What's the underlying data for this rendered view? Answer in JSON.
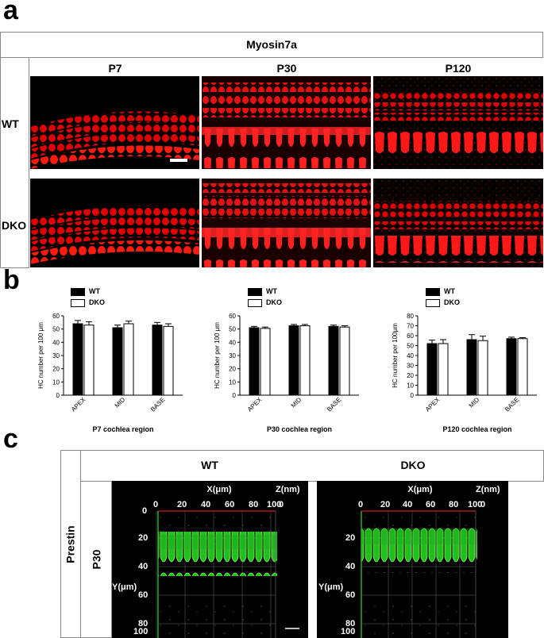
{
  "panel_a": {
    "letter": "a",
    "title": "Myosin7a",
    "columns": [
      "P7",
      "P30",
      "P120"
    ],
    "rows": [
      "WT",
      "DKO"
    ]
  },
  "panel_b": {
    "letter": "b",
    "legend": [
      "WT",
      "DKO"
    ],
    "colors": {
      "wt": "#000000",
      "dko": "#ffffff"
    }
  },
  "chart_data": [
    {
      "type": "bar",
      "categories": [
        "APEX",
        "MID",
        "BASE"
      ],
      "series": [
        {
          "name": "WT",
          "values": [
            54,
            51,
            53
          ],
          "errors": [
            2.5,
            2.0,
            2.0
          ]
        },
        {
          "name": "DKO",
          "values": [
            53,
            54,
            52
          ],
          "errors": [
            2.5,
            2.0,
            2.0
          ]
        }
      ],
      "xlabel": "P7 cochlea region",
      "ylabel": "HC number per 100 μm",
      "ylim": [
        0,
        60
      ],
      "yticks": [
        0,
        10,
        20,
        30,
        40,
        50,
        60
      ]
    },
    {
      "type": "bar",
      "categories": [
        "APEX",
        "MID",
        "BASE"
      ],
      "series": [
        {
          "name": "WT",
          "values": [
            51,
            52.5,
            52
          ],
          "errors": [
            1.0,
            1.0,
            1.0
          ]
        },
        {
          "name": "DKO",
          "values": [
            50.5,
            52.5,
            51.5
          ],
          "errors": [
            1.0,
            1.0,
            1.0
          ]
        }
      ],
      "xlabel": "P30 cochlea region",
      "ylabel": "HC number per 100 μm",
      "ylim": [
        0,
        60
      ],
      "yticks": [
        0,
        10,
        20,
        30,
        40,
        50,
        60
      ]
    },
    {
      "type": "bar",
      "categories": [
        "APEX",
        "MID",
        "BASE"
      ],
      "series": [
        {
          "name": "WT",
          "values": [
            52,
            56,
            57
          ],
          "errors": [
            3.5,
            5.0,
            1.5
          ]
        },
        {
          "name": "DKO",
          "values": [
            52,
            55,
            57
          ],
          "errors": [
            4.0,
            4.5,
            1.0
          ]
        }
      ],
      "xlabel": "P120 cochlea region",
      "ylabel": "HC number per 100μm",
      "ylim": [
        0,
        80
      ],
      "yticks": [
        0,
        10,
        20,
        30,
        40,
        50,
        60,
        70,
        80
      ]
    }
  ],
  "panel_c": {
    "letter": "c",
    "side_label": "Prestin",
    "row_label": "P30",
    "columns": [
      "WT",
      "DKO"
    ],
    "x_axis_label": "X(μm)",
    "z_axis_label": "Z(nm)",
    "y_axis_label": "Y(μm)",
    "x_ticks": [
      "0",
      "20",
      "40",
      "60",
      "80",
      "100"
    ],
    "y_ticks": [
      "0",
      "20",
      "40",
      "60",
      "80",
      "100"
    ],
    "z_tick": "0"
  }
}
